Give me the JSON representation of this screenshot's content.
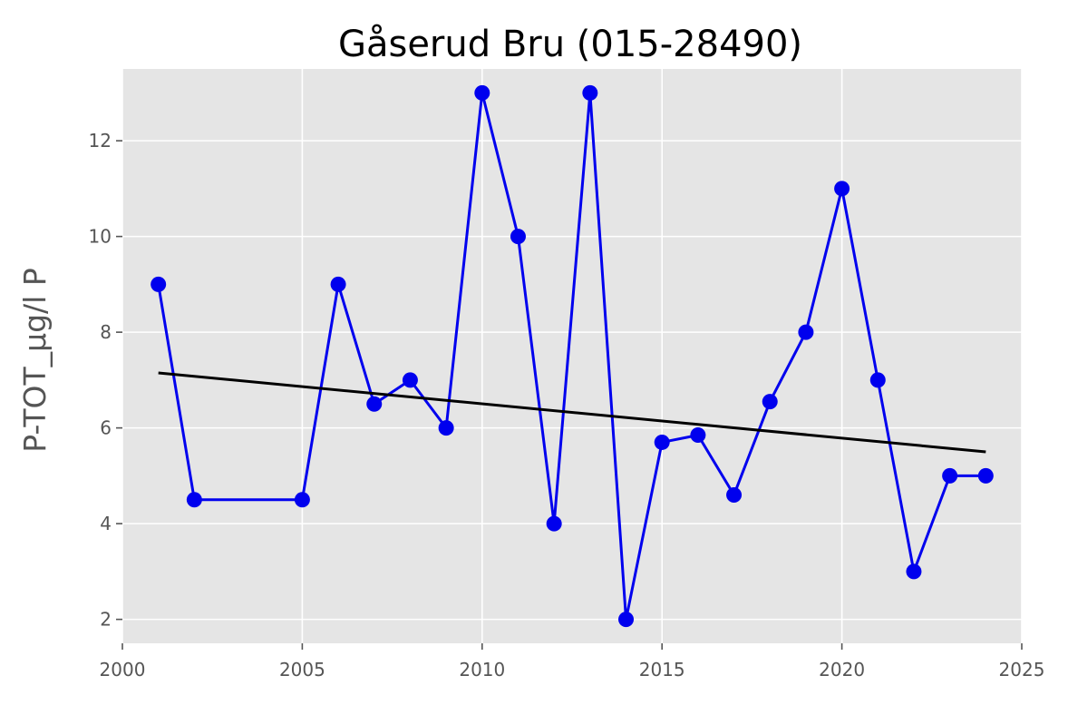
{
  "chart_data": {
    "type": "line",
    "title": "Gåserud Bru (015-28490)",
    "xlabel": "",
    "ylabel": "P-TOT_µg/l P",
    "xlim": [
      2000,
      2025
    ],
    "ylim": [
      1.5,
      13.5
    ],
    "xticks": [
      2000,
      2005,
      2010,
      2015,
      2020,
      2025
    ],
    "yticks": [
      2,
      4,
      6,
      8,
      10,
      12
    ],
    "grid": true,
    "background": "#e5e5e5",
    "series": [
      {
        "color": "#0000ee",
        "marker": "circle",
        "x": [
          2001,
          2002,
          2005,
          2006,
          2007,
          2008,
          2009,
          2010,
          2011,
          2012,
          2013,
          2014,
          2015,
          2016,
          2017,
          2018,
          2019,
          2020,
          2021,
          2022,
          2023,
          2024
        ],
        "y": [
          9,
          4.5,
          4.5,
          9,
          6.5,
          7,
          6,
          13,
          10,
          4,
          13,
          2,
          5.7,
          5.85,
          4.6,
          6.55,
          8,
          11,
          7,
          3,
          5,
          5
        ]
      }
    ],
    "trend_line": {
      "color": "#000000",
      "x": [
        2001,
        2024
      ],
      "y": [
        7.15,
        5.5
      ]
    }
  }
}
